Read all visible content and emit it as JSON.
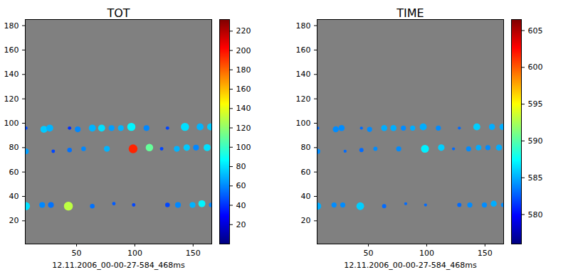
{
  "chart_data": [
    {
      "type": "heatmap",
      "title": "TOT",
      "caption": "12.11.2006_00-00-27-584_468ms",
      "color": "jet",
      "xlim": [
        6,
        166
      ],
      "ylim": [
        1,
        185
      ],
      "xticks": [
        50,
        100,
        150
      ],
      "yticks": [
        20,
        40,
        60,
        80,
        100,
        120,
        140,
        160,
        180
      ],
      "spots": {
        "x": [
          6.5,
          22,
          27,
          44,
          51,
          63.5,
          71.5,
          80,
          88,
          97,
          110,
          128,
          143,
          156,
          165,
          6.5,
          30,
          44,
          56,
          76,
          98.5,
          112.5,
          123,
          136,
          144.5,
          152.5,
          162,
          6.5,
          20.5,
          28,
          43,
          63.5,
          82,
          99,
          128,
          137,
          149.5,
          157.5,
          165.5
        ],
        "y": [
          96,
          95,
          96,
          96,
          95,
          96,
          96,
          96,
          96,
          97,
          96,
          96,
          97,
          97,
          97,
          77,
          77,
          78,
          79,
          79,
          79,
          80,
          79,
          79,
          80,
          80,
          80,
          32,
          33,
          33,
          32,
          32,
          34,
          33,
          33,
          33,
          33,
          34,
          33
        ],
        "values": [
          45,
          75,
          70,
          40,
          60,
          70,
          80,
          65,
          70,
          85,
          60,
          45,
          80,
          70,
          75,
          65,
          45,
          55,
          60,
          70,
          195,
          110,
          45,
          70,
          75,
          60,
          80,
          80,
          60,
          55,
          130,
          55,
          50,
          45,
          45,
          60,
          70,
          85,
          60
        ],
        "radius": [
          1.5,
          3,
          3,
          1.5,
          2.5,
          3,
          3,
          2.5,
          2.5,
          3.5,
          2.5,
          1.5,
          3.5,
          3,
          3,
          2.5,
          1.5,
          2,
          2,
          2.5,
          3.8,
          3.2,
          1.5,
          2.5,
          2.8,
          2.5,
          3,
          3.5,
          2.5,
          2.5,
          3.8,
          2,
          1.5,
          1.5,
          2,
          2.5,
          2.5,
          3,
          2
        ]
      },
      "colorbar": {
        "range": [
          0,
          232
        ],
        "ticks": [
          20,
          40,
          60,
          80,
          100,
          120,
          140,
          160,
          180,
          200,
          220
        ]
      }
    },
    {
      "type": "heatmap",
      "title": "TIME",
      "caption": "12.11.2006_00-00-27-584_468ms",
      "color": "jet",
      "xlim": [
        6,
        166
      ],
      "ylim": [
        1,
        185
      ],
      "xticks": [
        50,
        100,
        150
      ],
      "yticks": [
        20,
        40,
        60,
        80,
        100,
        120,
        140,
        160,
        180
      ],
      "spots": {
        "x": [
          6.5,
          22,
          27,
          44,
          51,
          63.5,
          71.5,
          80,
          88,
          97,
          110,
          128,
          143,
          156,
          165,
          6.5,
          30,
          44,
          56,
          76,
          98.5,
          112.5,
          123,
          136,
          144.5,
          152.5,
          162,
          6.5,
          20.5,
          28,
          43,
          63.5,
          82,
          99,
          128,
          137,
          149.5,
          157.5,
          165.5
        ],
        "y": [
          96,
          95,
          96,
          96,
          95,
          96,
          96,
          96,
          96,
          97,
          96,
          96,
          97,
          97,
          97,
          77,
          77,
          78,
          79,
          79,
          79,
          80,
          79,
          79,
          80,
          80,
          80,
          32,
          33,
          33,
          32,
          32,
          34,
          33,
          33,
          33,
          33,
          34,
          33
        ],
        "values": [
          583,
          584,
          584,
          583,
          584,
          585,
          585,
          584,
          585,
          585,
          584,
          583,
          586,
          585,
          585,
          584,
          583,
          583,
          584,
          584,
          587,
          586,
          583,
          584,
          585,
          584,
          585,
          585,
          584,
          584,
          586,
          583,
          583,
          583,
          583,
          584,
          584,
          585,
          584
        ],
        "radius": [
          1.3,
          2.6,
          2.6,
          1.3,
          2.2,
          2.6,
          2.6,
          2.2,
          2.2,
          3,
          2.2,
          1.3,
          3,
          2.6,
          2.6,
          2.2,
          1.3,
          1.8,
          1.8,
          2.2,
          3.4,
          2.8,
          1.3,
          2.2,
          2.4,
          2.2,
          2.6,
          3,
          2.2,
          2.2,
          3.3,
          1.8,
          1.3,
          1.3,
          1.8,
          2.2,
          2.2,
          2.6,
          1.8
        ]
      },
      "colorbar": {
        "range": [
          576,
          606.5
        ],
        "ticks": [
          580,
          585,
          590,
          595,
          600,
          605
        ]
      }
    }
  ]
}
